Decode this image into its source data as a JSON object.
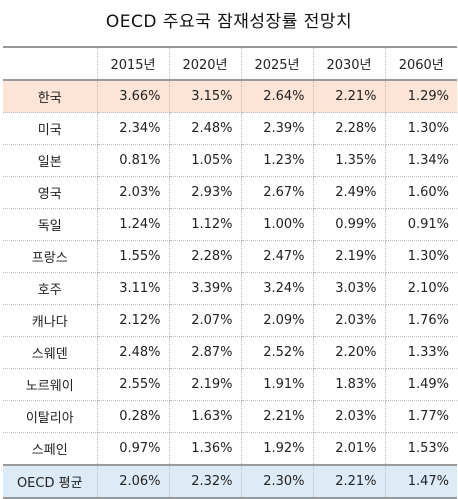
{
  "title": "OECD 주요국 잠재성장률 전망치",
  "colors": {
    "highlight_row": "#fce4d6",
    "average_row": "#ddebf7"
  },
  "columns": [
    "",
    "2015년",
    "2020년",
    "2025년",
    "2030년",
    "2060년"
  ],
  "rows": [
    {
      "country": "한국",
      "values": [
        "3.66%",
        "3.15%",
        "2.64%",
        "2.21%",
        "1.29%"
      ]
    },
    {
      "country": "미국",
      "values": [
        "2.34%",
        "2.48%",
        "2.39%",
        "2.28%",
        "1.30%"
      ]
    },
    {
      "country": "일본",
      "values": [
        "0.81%",
        "1.05%",
        "1.23%",
        "1.35%",
        "1.34%"
      ]
    },
    {
      "country": "영국",
      "values": [
        "2.03%",
        "2.93%",
        "2.67%",
        "2.49%",
        "1.60%"
      ]
    },
    {
      "country": "독일",
      "values": [
        "1.24%",
        "1.12%",
        "1.00%",
        "0.99%",
        "0.91%"
      ]
    },
    {
      "country": "프랑스",
      "values": [
        "1.55%",
        "2.28%",
        "2.47%",
        "2.19%",
        "1.30%"
      ]
    },
    {
      "country": "호주",
      "values": [
        "3.11%",
        "3.39%",
        "3.24%",
        "3.03%",
        "2.10%"
      ]
    },
    {
      "country": "캐나다",
      "values": [
        "2.12%",
        "2.07%",
        "2.09%",
        "2.03%",
        "1.76%"
      ]
    },
    {
      "country": "스웨덴",
      "values": [
        "2.48%",
        "2.87%",
        "2.52%",
        "2.20%",
        "1.33%"
      ]
    },
    {
      "country": "노르웨이",
      "values": [
        "2.55%",
        "2.19%",
        "1.91%",
        "1.83%",
        "1.49%"
      ]
    },
    {
      "country": "이탈리아",
      "values": [
        "0.28%",
        "1.63%",
        "2.21%",
        "2.03%",
        "1.77%"
      ]
    },
    {
      "country": "스페인",
      "values": [
        "0.97%",
        "1.36%",
        "1.92%",
        "2.01%",
        "1.53%"
      ]
    },
    {
      "country": "OECD 평균",
      "values": [
        "2.06%",
        "2.32%",
        "2.30%",
        "2.21%",
        "1.47%"
      ]
    }
  ]
}
